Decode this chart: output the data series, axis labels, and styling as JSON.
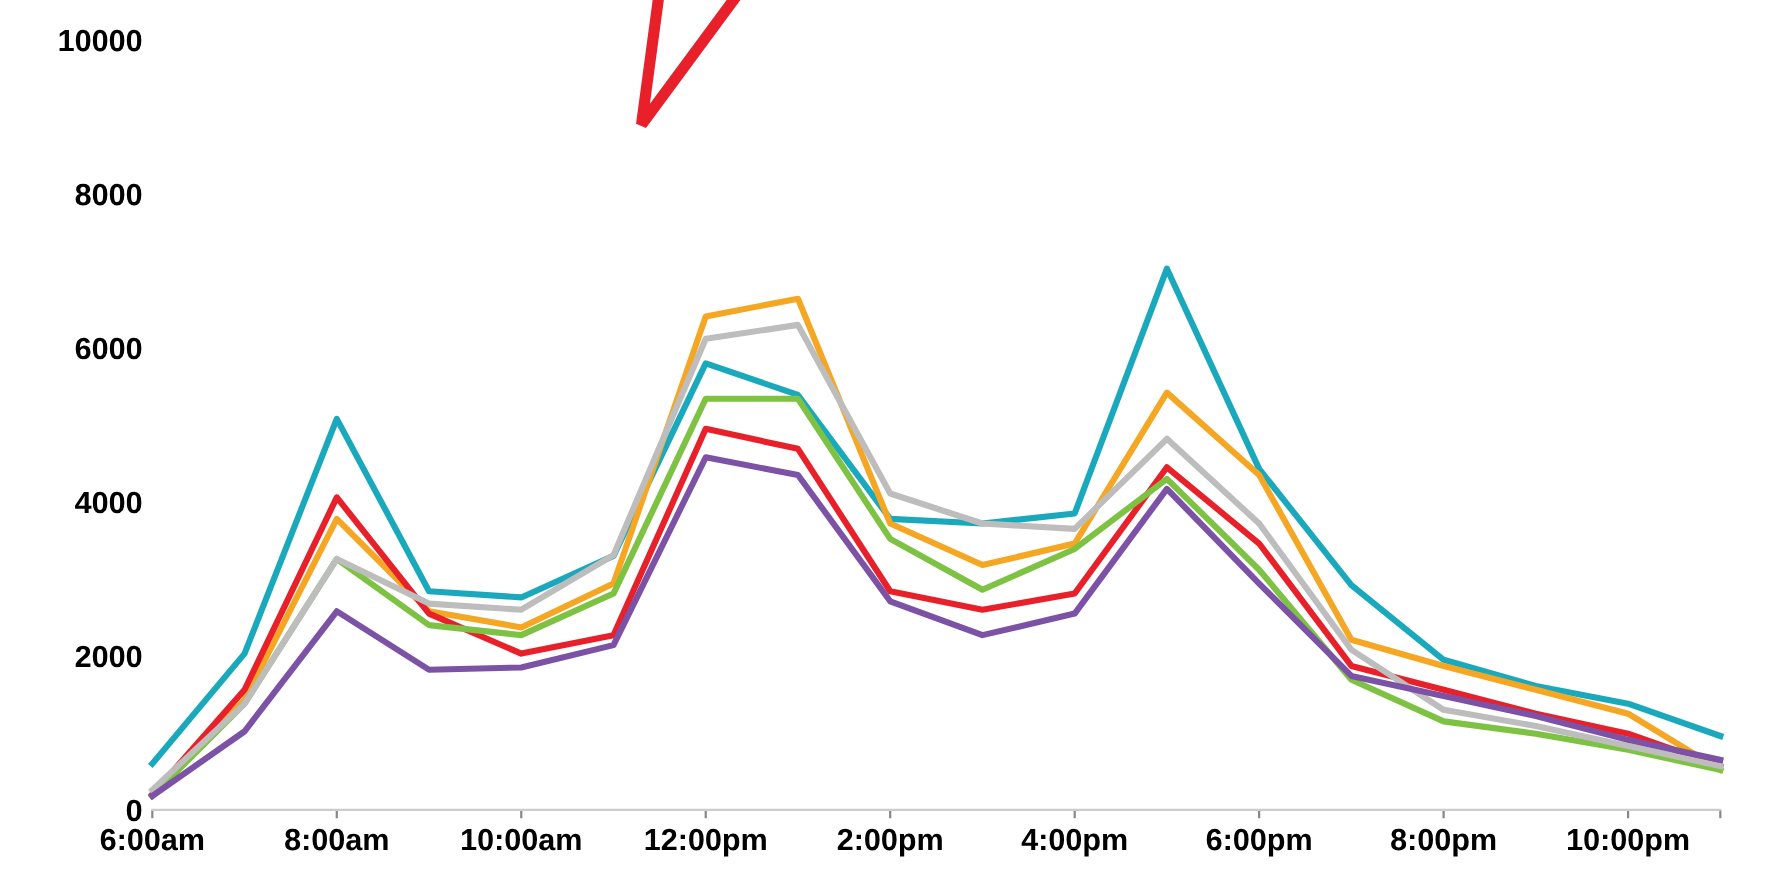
{
  "chart_data": {
    "type": "line",
    "x": [
      6,
      7,
      8,
      9,
      10,
      11,
      12,
      13,
      14,
      15,
      16,
      17,
      18,
      19,
      20,
      21,
      22,
      23
    ],
    "series": [
      {
        "color": "#1aa9bc",
        "values": [
          600,
          2030,
          5080,
          2840,
          2760,
          3300,
          5800,
          5390,
          3780,
          3720,
          3850,
          7030,
          4430,
          2920,
          1950,
          1610,
          1380,
          960
        ]
      },
      {
        "color": "#f5a623",
        "values": [
          200,
          1430,
          3780,
          2580,
          2370,
          2940,
          6410,
          6640,
          3720,
          3180,
          3460,
          5420,
          4350,
          2210,
          1870,
          1560,
          1250,
          520
        ]
      },
      {
        "color": "#e8202a",
        "values": [
          200,
          1560,
          4060,
          2550,
          2030,
          2270,
          4950,
          4690,
          2840,
          2600,
          2810,
          4450,
          3460,
          1870,
          1560,
          1250,
          990,
          570
        ]
      },
      {
        "color": "#7dc242",
        "values": [
          180,
          1380,
          3260,
          2400,
          2270,
          2810,
          5340,
          5340,
          3520,
          2860,
          3390,
          4300,
          3120,
          1690,
          1150,
          990,
          780,
          520
        ]
      },
      {
        "color": "#bdbdbd",
        "values": [
          260,
          1380,
          3260,
          2680,
          2600,
          3310,
          6120,
          6300,
          4110,
          3720,
          3650,
          4820,
          3720,
          2080,
          1300,
          1090,
          830,
          570
        ]
      },
      {
        "color": "#7b52a5",
        "values": [
          180,
          1020,
          2580,
          1820,
          1850,
          2140,
          4580,
          4350,
          2710,
          2270,
          2550,
          4170,
          2940,
          1740,
          1480,
          1220,
          910,
          650
        ]
      }
    ],
    "xlim": [
      6,
      23
    ],
    "xticks": [
      {
        "value": 6,
        "label": "6:00am"
      },
      {
        "value": 8,
        "label": "8:00am"
      },
      {
        "value": 10,
        "label": "10:00am"
      },
      {
        "value": 12,
        "label": "12:00pm"
      },
      {
        "value": 14,
        "label": "2:00pm"
      },
      {
        "value": 16,
        "label": "4:00pm"
      },
      {
        "value": 18,
        "label": "6:00pm"
      },
      {
        "value": 20,
        "label": "8:00pm"
      },
      {
        "value": 22,
        "label": "10:00pm"
      },
      {
        "value": 23,
        "label": null
      }
    ],
    "ylim": [
      0,
      10000
    ],
    "yticks": [
      0,
      2000,
      4000,
      6000,
      8000,
      10000
    ],
    "grid": false,
    "legend": false,
    "marker": "none",
    "line_style": "solid"
  }
}
